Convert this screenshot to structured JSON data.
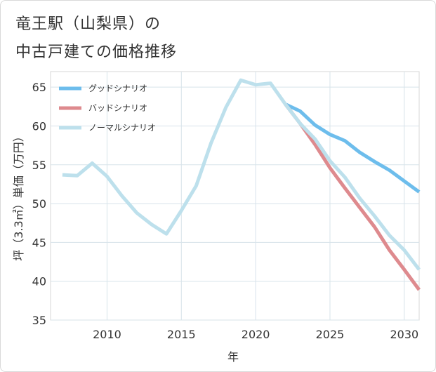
{
  "title_line1": "竜王駅（山梨県）の",
  "title_line2": "中古戸建ての価格推移",
  "chart_data": {
    "type": "line",
    "xlabel": "年",
    "ylabel": "坪（3.3㎡）単価（万円）",
    "xlim": [
      2006.2,
      2031
    ],
    "ylim": [
      35,
      67
    ],
    "xticks": [
      2010,
      2015,
      2020,
      2025,
      2030
    ],
    "yticks": [
      35,
      40,
      45,
      50,
      55,
      60,
      65
    ],
    "grid": true,
    "legend_position": "top-left",
    "series": [
      {
        "name": "グッドシナリオ",
        "color": "#6dbdec",
        "x": [
          2022,
          2023,
          2024,
          2025,
          2026,
          2027,
          2028,
          2029,
          2030,
          2031
        ],
        "y": [
          62.8,
          61.9,
          60.1,
          58.9,
          58.1,
          56.6,
          55.4,
          54.3,
          52.9,
          51.5
        ]
      },
      {
        "name": "バッドシナリオ",
        "color": "#de8a8e",
        "x": [
          2022,
          2023,
          2024,
          2025,
          2026,
          2027,
          2028,
          2029,
          2030,
          2031
        ],
        "y": [
          62.8,
          60.3,
          57.6,
          54.6,
          52.0,
          49.5,
          47.0,
          44.0,
          41.5,
          38.9
        ]
      },
      {
        "name": "ノーマルシナリオ",
        "color": "#bde0ec",
        "x": [
          2007,
          2008,
          2009,
          2010,
          2011,
          2012,
          2013,
          2014,
          2015,
          2016,
          2017,
          2018,
          2019,
          2020,
          2021,
          2022,
          2023,
          2024,
          2025,
          2026,
          2027,
          2028,
          2029,
          2030,
          2031
        ],
        "y": [
          53.7,
          53.6,
          55.2,
          53.5,
          51.0,
          48.8,
          47.3,
          46.1,
          49.1,
          52.3,
          57.8,
          62.4,
          65.9,
          65.3,
          65.5,
          62.8,
          60.3,
          58.3,
          55.5,
          53.4,
          50.7,
          48.4,
          45.9,
          44.0,
          41.5
        ]
      }
    ]
  }
}
